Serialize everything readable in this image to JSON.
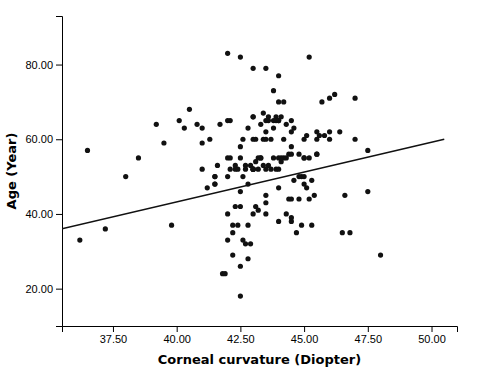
{
  "chart_data": {
    "type": "scatter",
    "xlabel": "Corneal curvature (Diopter)",
    "ylabel": "Age (Year)",
    "xlim": [
      35.5,
      51.0
    ],
    "ylim": [
      10,
      93
    ],
    "xticks": [
      {
        "value": 37.5,
        "label": "37.50"
      },
      {
        "value": 40.0,
        "label": "40.00"
      },
      {
        "value": 42.5,
        "label": "42.50"
      },
      {
        "value": 45.0,
        "label": "45.00"
      },
      {
        "value": 47.5,
        "label": "47.50"
      },
      {
        "value": 50.0,
        "label": "50.00"
      }
    ],
    "yticks": [
      {
        "value": 20.0,
        "label": "20.00"
      },
      {
        "value": 40.0,
        "label": "40.00"
      },
      {
        "value": 60.0,
        "label": "60.00"
      },
      {
        "value": 80.0,
        "label": "80.00"
      }
    ],
    "grid": false,
    "series": [
      {
        "type": "scatter",
        "color": "#111111",
        "x": [
          36.2,
          36.5,
          37.2,
          38.0,
          38.5,
          39.2,
          39.5,
          39.8,
          40.1,
          40.3,
          40.5,
          40.8,
          41.0,
          41.0,
          41.2,
          41.3,
          41.5,
          41.5,
          41.6,
          41.7,
          41.8,
          41.9,
          42.0,
          42.0,
          42.1,
          42.1,
          42.2,
          42.2,
          42.3,
          42.3,
          42.4,
          42.4,
          42.5,
          42.5,
          42.5,
          42.6,
          42.6,
          42.7,
          42.7,
          42.8,
          42.8,
          42.8,
          42.9,
          42.9,
          43.0,
          43.0,
          43.0,
          43.1,
          43.1,
          43.2,
          43.2,
          43.3,
          43.3,
          43.4,
          43.4,
          43.5,
          43.5,
          43.6,
          43.6,
          43.7,
          43.7,
          43.8,
          43.8,
          43.9,
          43.9,
          44.0,
          44.0,
          44.0,
          44.1,
          44.1,
          44.2,
          44.2,
          44.3,
          44.3,
          44.4,
          44.4,
          44.5,
          44.5,
          44.6,
          44.6,
          44.7,
          44.8,
          44.8,
          44.9,
          44.9,
          45.0,
          45.0,
          45.1,
          45.1,
          45.2,
          45.2,
          45.3,
          45.3,
          45.4,
          45.5,
          45.6,
          45.7,
          45.8,
          46.0,
          46.2,
          46.4,
          46.6,
          46.8,
          47.0,
          47.5,
          48.0,
          42.0,
          42.5,
          43.0,
          43.5,
          44.0,
          44.5,
          42.2,
          42.8,
          43.3,
          43.8,
          44.3,
          44.8,
          43.0,
          43.5,
          42.0,
          42.5,
          43.0,
          43.5,
          44.0,
          44.2,
          43.8,
          44.5,
          45.2,
          42.3,
          43.1,
          43.6,
          44.1,
          42.7,
          43.4,
          43.9,
          41.5,
          42.1,
          42.6,
          43.2,
          44.5,
          45.0,
          45.5,
          46.0,
          43.0,
          43.5,
          44.0,
          44.5,
          45.0,
          45.5,
          41.0,
          41.5,
          42.0,
          42.5,
          43.0,
          43.5,
          44.0,
          44.5,
          45.0,
          45.5,
          46.0,
          46.5,
          47.0,
          47.5,
          42.0,
          42.5,
          43.0,
          43.5,
          44.0
        ],
        "values": [
          33,
          57,
          36,
          50,
          55,
          64,
          59,
          37,
          65,
          63,
          68,
          64,
          52,
          59,
          47,
          60,
          48,
          50,
          53,
          64,
          24,
          24,
          33,
          40,
          52,
          65,
          29,
          37,
          42,
          52,
          37,
          52,
          18,
          26,
          42,
          33,
          50,
          32,
          53,
          28,
          37,
          63,
          32,
          53,
          40,
          52,
          66,
          42,
          54,
          41,
          52,
          55,
          64,
          53,
          67,
          43,
          65,
          53,
          66,
          52,
          60,
          55,
          65,
          52,
          66,
          65,
          70,
          52,
          54,
          66,
          55,
          60,
          55,
          64,
          44,
          56,
          38,
          56,
          49,
          63,
          35,
          44,
          56,
          37,
          50,
          55,
          60,
          47,
          61,
          44,
          55,
          37,
          49,
          45,
          60,
          61,
          70,
          61,
          62,
          72,
          62,
          45,
          35,
          60,
          57,
          29,
          50,
          58,
          66,
          45,
          55,
          62,
          35,
          48,
          55,
          63,
          40,
          50,
          52,
          40,
          55,
          46,
          52,
          60,
          77,
          70,
          73,
          65,
          82,
          53,
          60,
          65,
          55,
          52,
          60,
          65,
          48,
          55,
          60,
          55,
          39,
          50,
          56,
          71,
          52,
          62,
          47,
          44,
          48,
          56,
          63,
          50,
          65,
          55,
          60,
          52,
          65,
          58,
          55,
          62,
          60,
          35,
          71,
          46,
          83,
          82,
          79,
          79,
          38
        ]
      },
      {
        "type": "line",
        "color": "#111111",
        "x": [
          35.5,
          50.5
        ],
        "values": [
          36.0,
          60.0
        ]
      }
    ]
  }
}
